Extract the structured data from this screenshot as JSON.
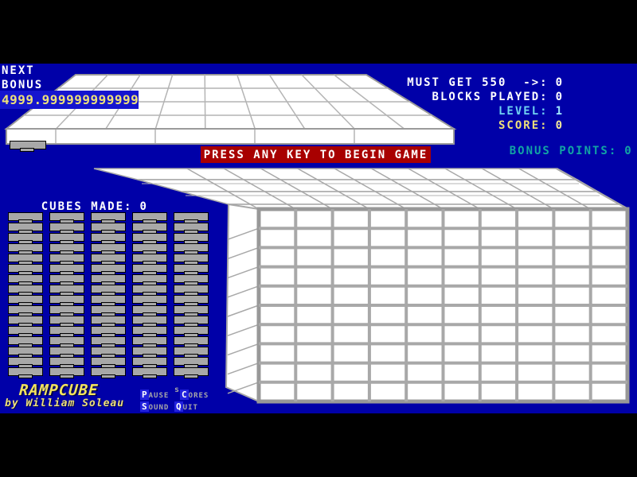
{
  "hud": {
    "next_label": "NEXT",
    "bonus_label": "BONUS",
    "bonus_value": "4999.999999999999",
    "must_get": {
      "label": "MUST GET 550  ->:",
      "value": "0"
    },
    "blocks_played": {
      "label": "BLOCKS PLAYED:",
      "value": "0"
    },
    "level": {
      "label": "LEVEL:",
      "value": "1"
    },
    "score": {
      "label": "SCORE:",
      "value": "0"
    },
    "bonus_points": {
      "label": "BONUS POINTS:",
      "value": "0"
    },
    "cubes_made": {
      "label": "CUBES MADE:",
      "value": "0"
    }
  },
  "banner": {
    "text": "PRESS ANY KEY TO BEGIN GAME"
  },
  "title": {
    "name": "RAMPCUBE",
    "byline": "by William Soleau"
  },
  "menu": {
    "items": [
      {
        "id": "pause",
        "pre": "",
        "hot": "P",
        "post": "AUSE"
      },
      {
        "id": "scores",
        "pre": "s",
        "hot": "C",
        "post": "ORES"
      },
      {
        "id": "sound",
        "pre": "",
        "hot": "S",
        "post": "OUND"
      },
      {
        "id": "quit",
        "pre": "",
        "hot": "Q",
        "post": "UIT"
      }
    ]
  },
  "board": {
    "left_stacks": {
      "columns": 5,
      "blocks_per_column": 16
    },
    "next_block_count": 1,
    "ramp_grid": {
      "rows": 4,
      "cols": 9
    },
    "slab_top_steps": 4,
    "front_grid": {
      "rows": 10,
      "cols": 10
    }
  },
  "colors": {
    "background": "#000000",
    "field_blue": "#0000A8",
    "highlight_blue": "#1515CF",
    "hotkey_blue": "#2222DD",
    "banner_red": "#A80000",
    "surface_white": "#FFFFFF",
    "grid_gray": "#A8A8A8",
    "block_gray": "#A8A8A8",
    "text_white": "#FFFFFF",
    "text_yellow": "#EDE07A",
    "text_cyan": "#6FD2F2",
    "text_teal": "#12A4A4"
  }
}
